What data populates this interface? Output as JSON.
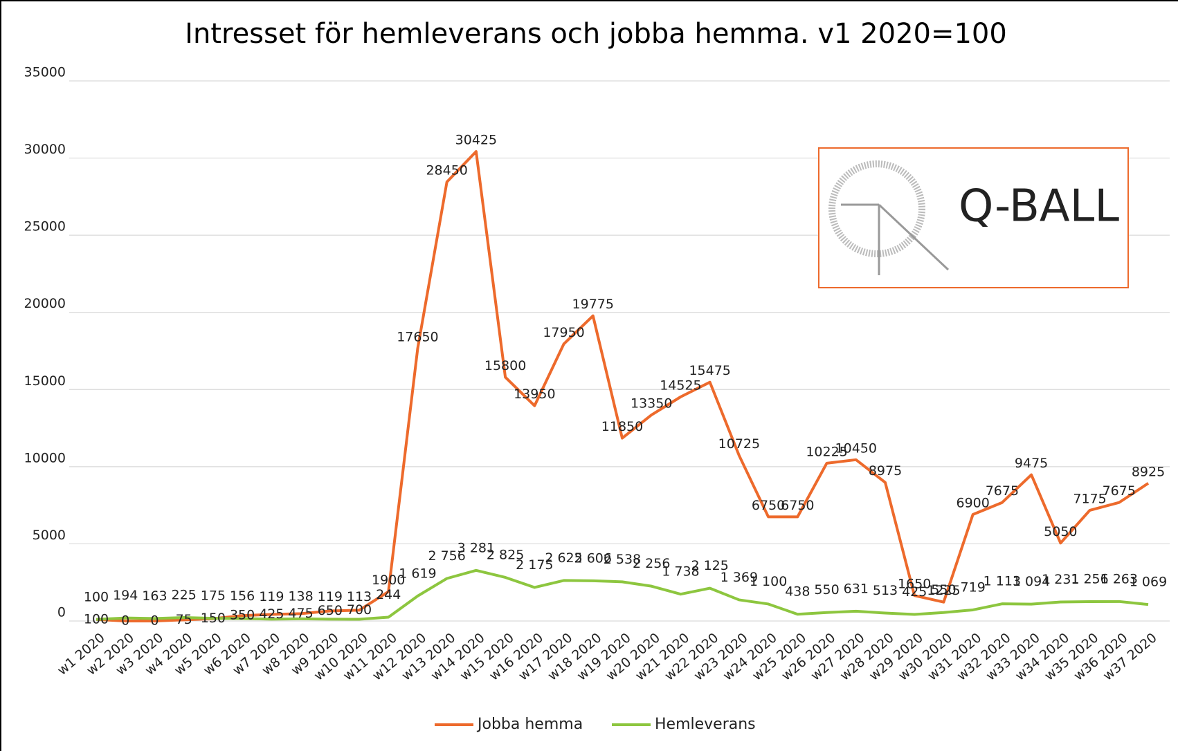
{
  "chart_data": {
    "type": "line",
    "title": "Intresset för hemleverans och jobba hemma. v1 2020=100",
    "categories": [
      "w1 2020",
      "w2 2020",
      "w3 2020",
      "w4 2020",
      "w5 2020",
      "w6 2020",
      "w7 2020",
      "w8 2020",
      "w9 2020",
      "w10 2020",
      "w11 2020",
      "w12 2020",
      "w13 2020",
      "w14 2020",
      "w15 2020",
      "w16 2020",
      "w17 2020",
      "w18 2020",
      "w19 2020",
      "w20 2020",
      "w21 2020",
      "w22 2020",
      "w23 2020",
      "w24 2020",
      "w25 2020",
      "w26 2020",
      "w27 2020",
      "w28 2020",
      "w29 2020",
      "w30 2020",
      "w31 2020",
      "w32 2020",
      "w33 2020",
      "w34 2020",
      "w35 2020",
      "w36 2020",
      "w37 2020"
    ],
    "series": [
      {
        "name": "Jobba hemma",
        "color": "#ed6a2c",
        "values": [
          100,
          0,
          0,
          75,
          150,
          350,
          425,
          475,
          650,
          700,
          1900,
          17650,
          28450,
          30425,
          15800,
          13950,
          17950,
          19775,
          11850,
          13350,
          14525,
          15475,
          10725,
          6750,
          6750,
          10225,
          10450,
          8975,
          1650,
          1225,
          6900,
          7675,
          9475,
          5050,
          7175,
          7675,
          8925
        ]
      },
      {
        "name": "Hemleverans",
        "color": "#8dc63f",
        "values": [
          100,
          194,
          163,
          225,
          175,
          156,
          119,
          138,
          119,
          113,
          244,
          1619,
          2756,
          3281,
          2825,
          2175,
          2625,
          2606,
          2538,
          2256,
          1738,
          2125,
          1369,
          1100,
          438,
          550,
          631,
          513,
          425,
          550,
          719,
          1113,
          1094,
          1231,
          1256,
          1263,
          1069
        ],
        "value_labels": [
          "100",
          "194",
          "163",
          "225",
          "175",
          "156",
          "119",
          "138",
          "119",
          "113",
          "244",
          "1 619",
          "2 756",
          "3 281",
          "2 825",
          "2 175",
          "2 625",
          "2 606",
          "2 538",
          "2 256",
          "1 738",
          "2 125",
          "1 369",
          "1 100",
          "438",
          "550",
          "631",
          "513",
          "425",
          "550",
          "719",
          "1 113",
          "1 094",
          "1 231",
          "1 256",
          "1 263",
          "1 069"
        ]
      }
    ],
    "ylim": [
      0,
      35000
    ],
    "yticks": [
      0,
      5000,
      10000,
      15000,
      20000,
      25000,
      30000,
      35000
    ],
    "grid": true,
    "legend": "bottom",
    "logo": "Q-BALL"
  }
}
